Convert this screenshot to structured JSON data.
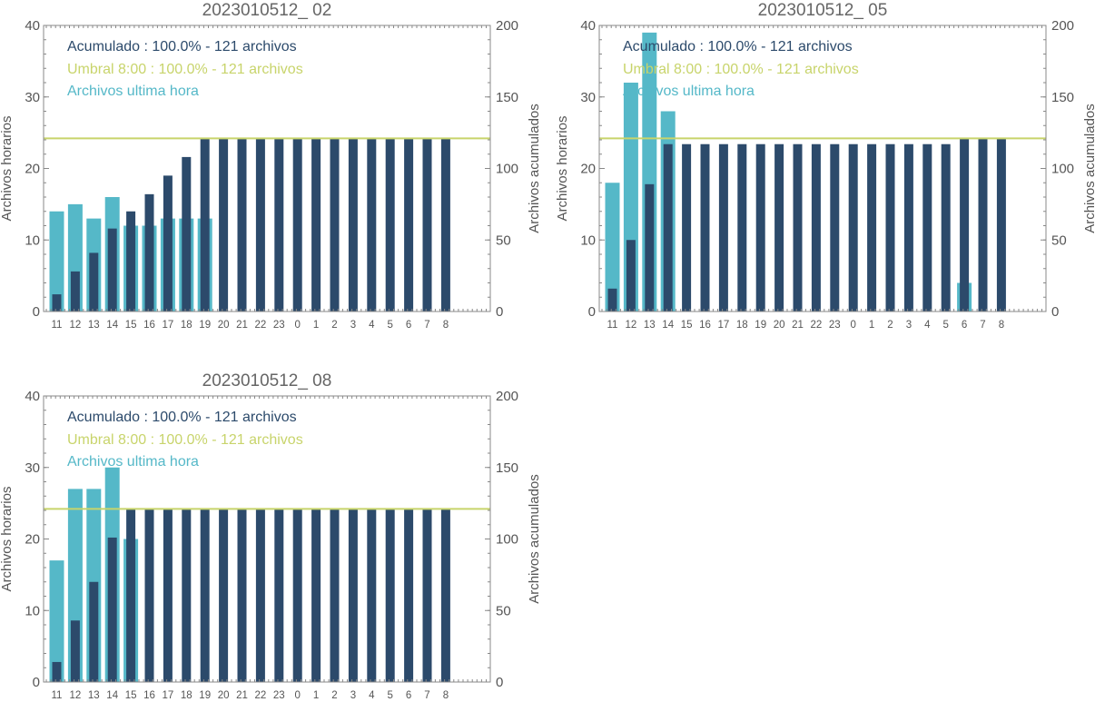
{
  "colors": {
    "acumulado": "#2c4a6b",
    "umbral": "#c8d46b",
    "ultima_hora": "#55b8c8",
    "axis": "#888888",
    "text": "#555555",
    "title": "#666666"
  },
  "chart_data": [
    {
      "type": "bar",
      "title": "2023010512_ 02",
      "ylabel": "Archivos horarios",
      "y2label": "Archivos acumulados",
      "ylim": [
        0,
        40
      ],
      "y2lim": [
        0,
        200
      ],
      "yticks": [
        0,
        10,
        20,
        30,
        40
      ],
      "y2ticks": [
        0,
        50,
        100,
        150,
        200
      ],
      "categories": [
        "11",
        "12",
        "13",
        "14",
        "15",
        "16",
        "17",
        "18",
        "19",
        "20",
        "21",
        "22",
        "23",
        "0",
        "1",
        "2",
        "3",
        "4",
        "5",
        "6",
        "7",
        "8"
      ],
      "umbral": 121,
      "legend": {
        "acumulado": "Acumulado : 100.0% - 121 archivos",
        "umbral": "Umbral 8:00 : 100.0% - 121 archivos",
        "ultima_hora": "Archivos ultima hora"
      },
      "series": [
        {
          "name": "Archivos ultima hora",
          "axis": "left",
          "values": [
            14,
            15,
            13,
            16,
            12,
            12,
            13,
            13,
            13,
            null,
            null,
            null,
            null,
            null,
            null,
            null,
            null,
            null,
            null,
            null,
            null,
            null
          ]
        },
        {
          "name": "Acumulado",
          "axis": "right",
          "values": [
            12,
            28,
            41,
            58,
            70,
            82,
            95,
            108,
            121,
            121,
            121,
            121,
            121,
            121,
            121,
            121,
            121,
            121,
            121,
            121,
            121,
            121
          ]
        }
      ]
    },
    {
      "type": "bar",
      "title": "2023010512_ 05",
      "ylabel": "Archivos horarios",
      "y2label": "Archivos acumulados",
      "ylim": [
        0,
        40
      ],
      "y2lim": [
        0,
        200
      ],
      "yticks": [
        0,
        10,
        20,
        30,
        40
      ],
      "y2ticks": [
        0,
        50,
        100,
        150,
        200
      ],
      "categories": [
        "11",
        "12",
        "13",
        "14",
        "15",
        "16",
        "17",
        "18",
        "19",
        "20",
        "21",
        "22",
        "23",
        "0",
        "1",
        "2",
        "3",
        "4",
        "5",
        "6",
        "7",
        "8"
      ],
      "umbral": 121,
      "legend": {
        "acumulado": "Acumulado : 100.0% - 121 archivos",
        "umbral": "Umbral 8:00 : 100.0% - 121 archivos",
        "ultima_hora": "Archivos ultima hora"
      },
      "series": [
        {
          "name": "Archivos ultima hora",
          "axis": "left",
          "values": [
            18,
            32,
            39,
            28,
            null,
            null,
            null,
            null,
            null,
            null,
            null,
            null,
            null,
            null,
            null,
            null,
            null,
            null,
            null,
            4,
            null,
            null
          ]
        },
        {
          "name": "Acumulado",
          "axis": "right",
          "values": [
            16,
            50,
            89,
            117,
            117,
            117,
            117,
            117,
            117,
            117,
            117,
            117,
            117,
            117,
            117,
            117,
            117,
            117,
            117,
            121,
            121,
            121
          ]
        }
      ]
    },
    {
      "type": "bar",
      "title": "2023010512_ 08",
      "ylabel": "Archivos horarios",
      "y2label": "Archivos acumulados",
      "ylim": [
        0,
        40
      ],
      "y2lim": [
        0,
        200
      ],
      "yticks": [
        0,
        10,
        20,
        30,
        40
      ],
      "y2ticks": [
        0,
        50,
        100,
        150,
        200
      ],
      "categories": [
        "11",
        "12",
        "13",
        "14",
        "15",
        "16",
        "17",
        "18",
        "19",
        "20",
        "21",
        "22",
        "23",
        "0",
        "1",
        "2",
        "3",
        "4",
        "5",
        "6",
        "7",
        "8"
      ],
      "umbral": 121,
      "legend": {
        "acumulado": "Acumulado : 100.0% - 121 archivos",
        "umbral": "Umbral 8:00 : 100.0% - 121 archivos",
        "ultima_hora": "Archivos ultima hora"
      },
      "series": [
        {
          "name": "Archivos ultima hora",
          "axis": "left",
          "values": [
            17,
            27,
            27,
            30,
            20,
            null,
            null,
            null,
            null,
            null,
            null,
            null,
            null,
            null,
            null,
            null,
            null,
            null,
            null,
            null,
            null,
            null
          ]
        },
        {
          "name": "Acumulado",
          "axis": "right",
          "values": [
            14,
            43,
            70,
            101,
            121,
            121,
            121,
            121,
            121,
            121,
            121,
            121,
            121,
            121,
            121,
            121,
            121,
            121,
            121,
            121,
            121,
            121
          ]
        }
      ]
    }
  ]
}
